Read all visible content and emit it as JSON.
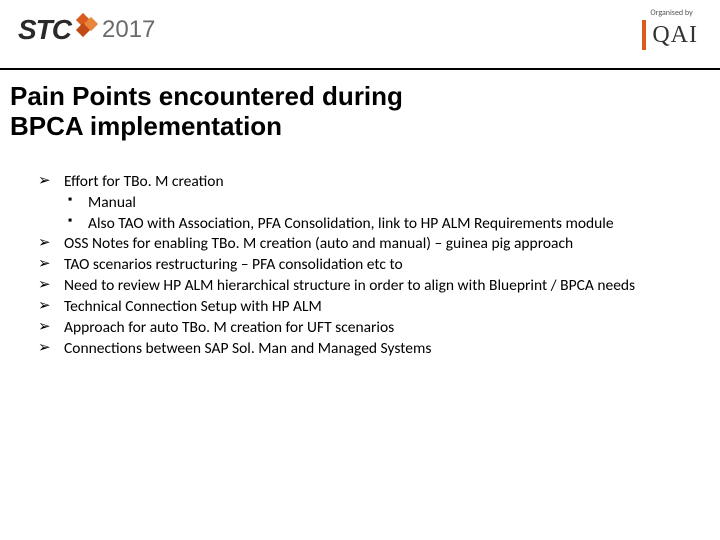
{
  "header": {
    "logo_stc": "STC",
    "logo_year": "2017",
    "organised_label": "Organised by",
    "qai_text": "QAI"
  },
  "title": {
    "line1": "Pain Points encountered during",
    "line2": "BPCA implementation"
  },
  "bullets": {
    "b1": "Effort for TBo. M creation",
    "b1_sub1": "Manual",
    "b1_sub2": "Also TAO with Association, PFA Consolidation, link to HP ALM Requirements module",
    "b2": "OSS Notes for enabling TBo. M creation (auto and manual) – guinea pig approach",
    "b3": "TAO scenarios restructuring – PFA consolidation etc to",
    "b4": "Need to review HP ALM hierarchical structure in order to align with Blueprint / BPCA needs",
    "b5": "Technical Connection Setup with HP ALM",
    "b6": "Approach for auto TBo. M creation for UFT scenarios",
    "b7": "Connections between SAP Sol. Man and Managed Systems"
  },
  "colors": {
    "accent_orange": "#d95b1e",
    "text_black": "#000000",
    "background": "#ffffff"
  }
}
